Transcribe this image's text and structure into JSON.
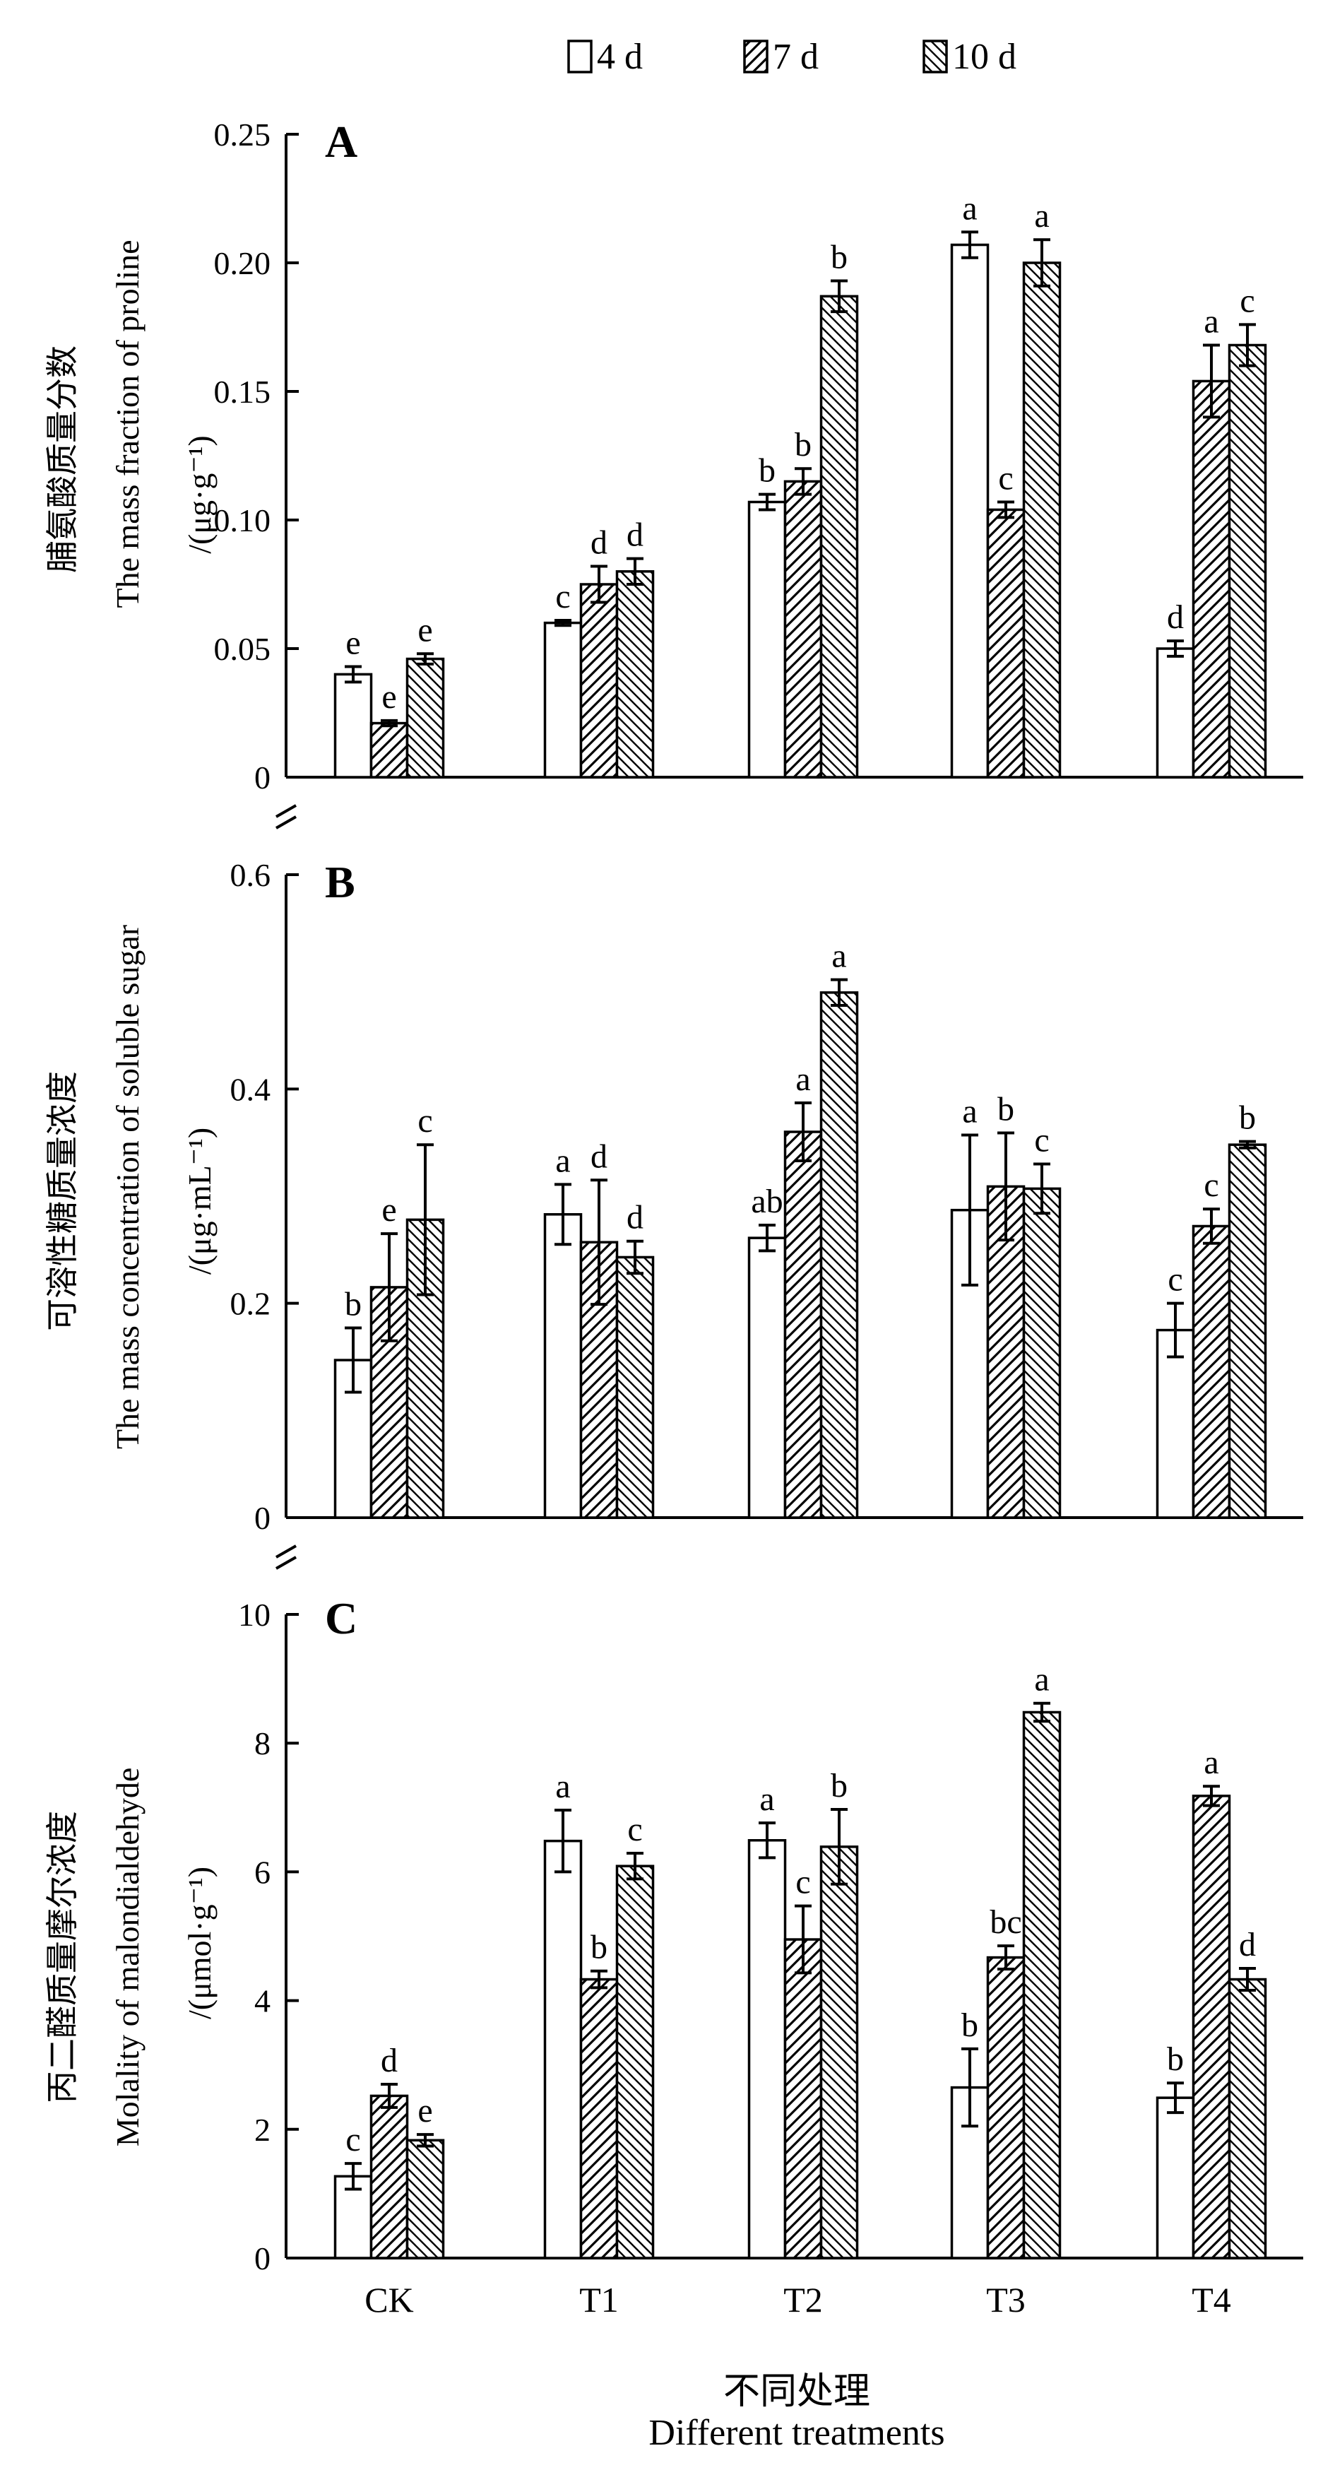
{
  "legend": [
    {
      "label": "4 d",
      "pattern": "none"
    },
    {
      "label": "7 d",
      "pattern": "diag-right"
    },
    {
      "label": "10 d",
      "pattern": "diag-left"
    }
  ],
  "x_axis": {
    "label_zh": "不同处理",
    "label_en": "Different treatments"
  },
  "chart_data": [
    {
      "type": "bar",
      "panel": "A",
      "categories": [
        "CK",
        "T1",
        "T2",
        "T3",
        "T4"
      ],
      "ylabel_zh": "脯氨酸质量分数",
      "ylabel_en": "The mass fraction of proline",
      "ylabel_unit": "/(μg·g⁻¹)",
      "ylim": [
        0,
        0.25
      ],
      "yticks": [
        0,
        0.05,
        0.1,
        0.15,
        0.2,
        0.25
      ],
      "ytick_labels": [
        "0",
        "0.05",
        "0.10",
        "0.15",
        "0.20",
        "0.25"
      ],
      "series": [
        {
          "name": "4 d",
          "values": [
            0.04,
            0.06,
            0.107,
            0.207,
            0.05
          ],
          "errors": [
            0.003,
            0.001,
            0.003,
            0.005,
            0.003
          ],
          "letters": [
            "e",
            "c",
            "b",
            "a",
            "d"
          ]
        },
        {
          "name": "7 d",
          "values": [
            0.021,
            0.075,
            0.115,
            0.104,
            0.154
          ],
          "errors": [
            0.001,
            0.007,
            0.005,
            0.003,
            0.014
          ],
          "letters": [
            "e",
            "d",
            "b",
            "c",
            "a"
          ]
        },
        {
          "name": "10 d",
          "values": [
            0.046,
            0.08,
            0.187,
            0.2,
            0.168
          ],
          "errors": [
            0.002,
            0.005,
            0.006,
            0.009,
            0.008
          ],
          "letters": [
            "e",
            "d",
            "b",
            "a",
            "c"
          ]
        }
      ]
    },
    {
      "type": "bar",
      "panel": "B",
      "categories": [
        "CK",
        "T1",
        "T2",
        "T3",
        "T4"
      ],
      "ylabel_zh": "可溶性糖质量浓度",
      "ylabel_en": "The mass concentration of soluble sugar",
      "ylabel_unit": "/(μg·mL⁻¹)",
      "ylim": [
        0,
        0.6
      ],
      "yticks": [
        0,
        0.2,
        0.4,
        0.6
      ],
      "ytick_labels": [
        "0",
        "0.2",
        "0.4",
        "0.6"
      ],
      "series": [
        {
          "name": "4 d",
          "values": [
            0.147,
            0.283,
            0.261,
            0.287,
            0.175
          ],
          "errors": [
            0.03,
            0.028,
            0.012,
            0.07,
            0.025
          ],
          "letters": [
            "b",
            "a",
            "ab",
            "a",
            "c"
          ]
        },
        {
          "name": "7 d",
          "values": [
            0.215,
            0.257,
            0.36,
            0.309,
            0.272
          ],
          "errors": [
            0.05,
            0.058,
            0.027,
            0.05,
            0.016
          ],
          "letters": [
            "e",
            "d",
            "a",
            "b",
            "c"
          ]
        },
        {
          "name": "10 d",
          "values": [
            0.278,
            0.243,
            0.49,
            0.307,
            0.348
          ],
          "errors": [
            0.07,
            0.015,
            0.012,
            0.023,
            0.003
          ],
          "letters": [
            "c",
            "d",
            "a",
            "c",
            "b"
          ]
        }
      ]
    },
    {
      "type": "bar",
      "panel": "C",
      "categories": [
        "CK",
        "T1",
        "T2",
        "T3",
        "T4"
      ],
      "ylabel_zh": "丙二醛质量摩尔浓度",
      "ylabel_en": "Molality of malondialdehyde",
      "ylabel_unit": "/(μmol·g⁻¹)",
      "ylim": [
        0,
        10
      ],
      "yticks": [
        0,
        2,
        4,
        6,
        8,
        10
      ],
      "ytick_labels": [
        "0",
        "2",
        "4",
        "6",
        "8",
        "10"
      ],
      "series": [
        {
          "name": "4 d",
          "values": [
            1.27,
            6.48,
            6.49,
            2.65,
            2.49
          ],
          "errors": [
            0.2,
            0.48,
            0.27,
            0.6,
            0.23
          ],
          "letters": [
            "c",
            "a",
            "a",
            "b",
            "b"
          ]
        },
        {
          "name": "7 d",
          "values": [
            2.52,
            4.33,
            4.95,
            4.67,
            7.18
          ],
          "errors": [
            0.18,
            0.13,
            0.52,
            0.18,
            0.15
          ],
          "letters": [
            "d",
            "b",
            "c",
            "bc",
            "a"
          ]
        },
        {
          "name": "10 d",
          "values": [
            1.83,
            6.09,
            6.39,
            8.48,
            4.33
          ],
          "errors": [
            0.09,
            0.2,
            0.58,
            0.14,
            0.17
          ],
          "letters": [
            "e",
            "c",
            "b",
            "a",
            "d"
          ]
        }
      ]
    }
  ]
}
